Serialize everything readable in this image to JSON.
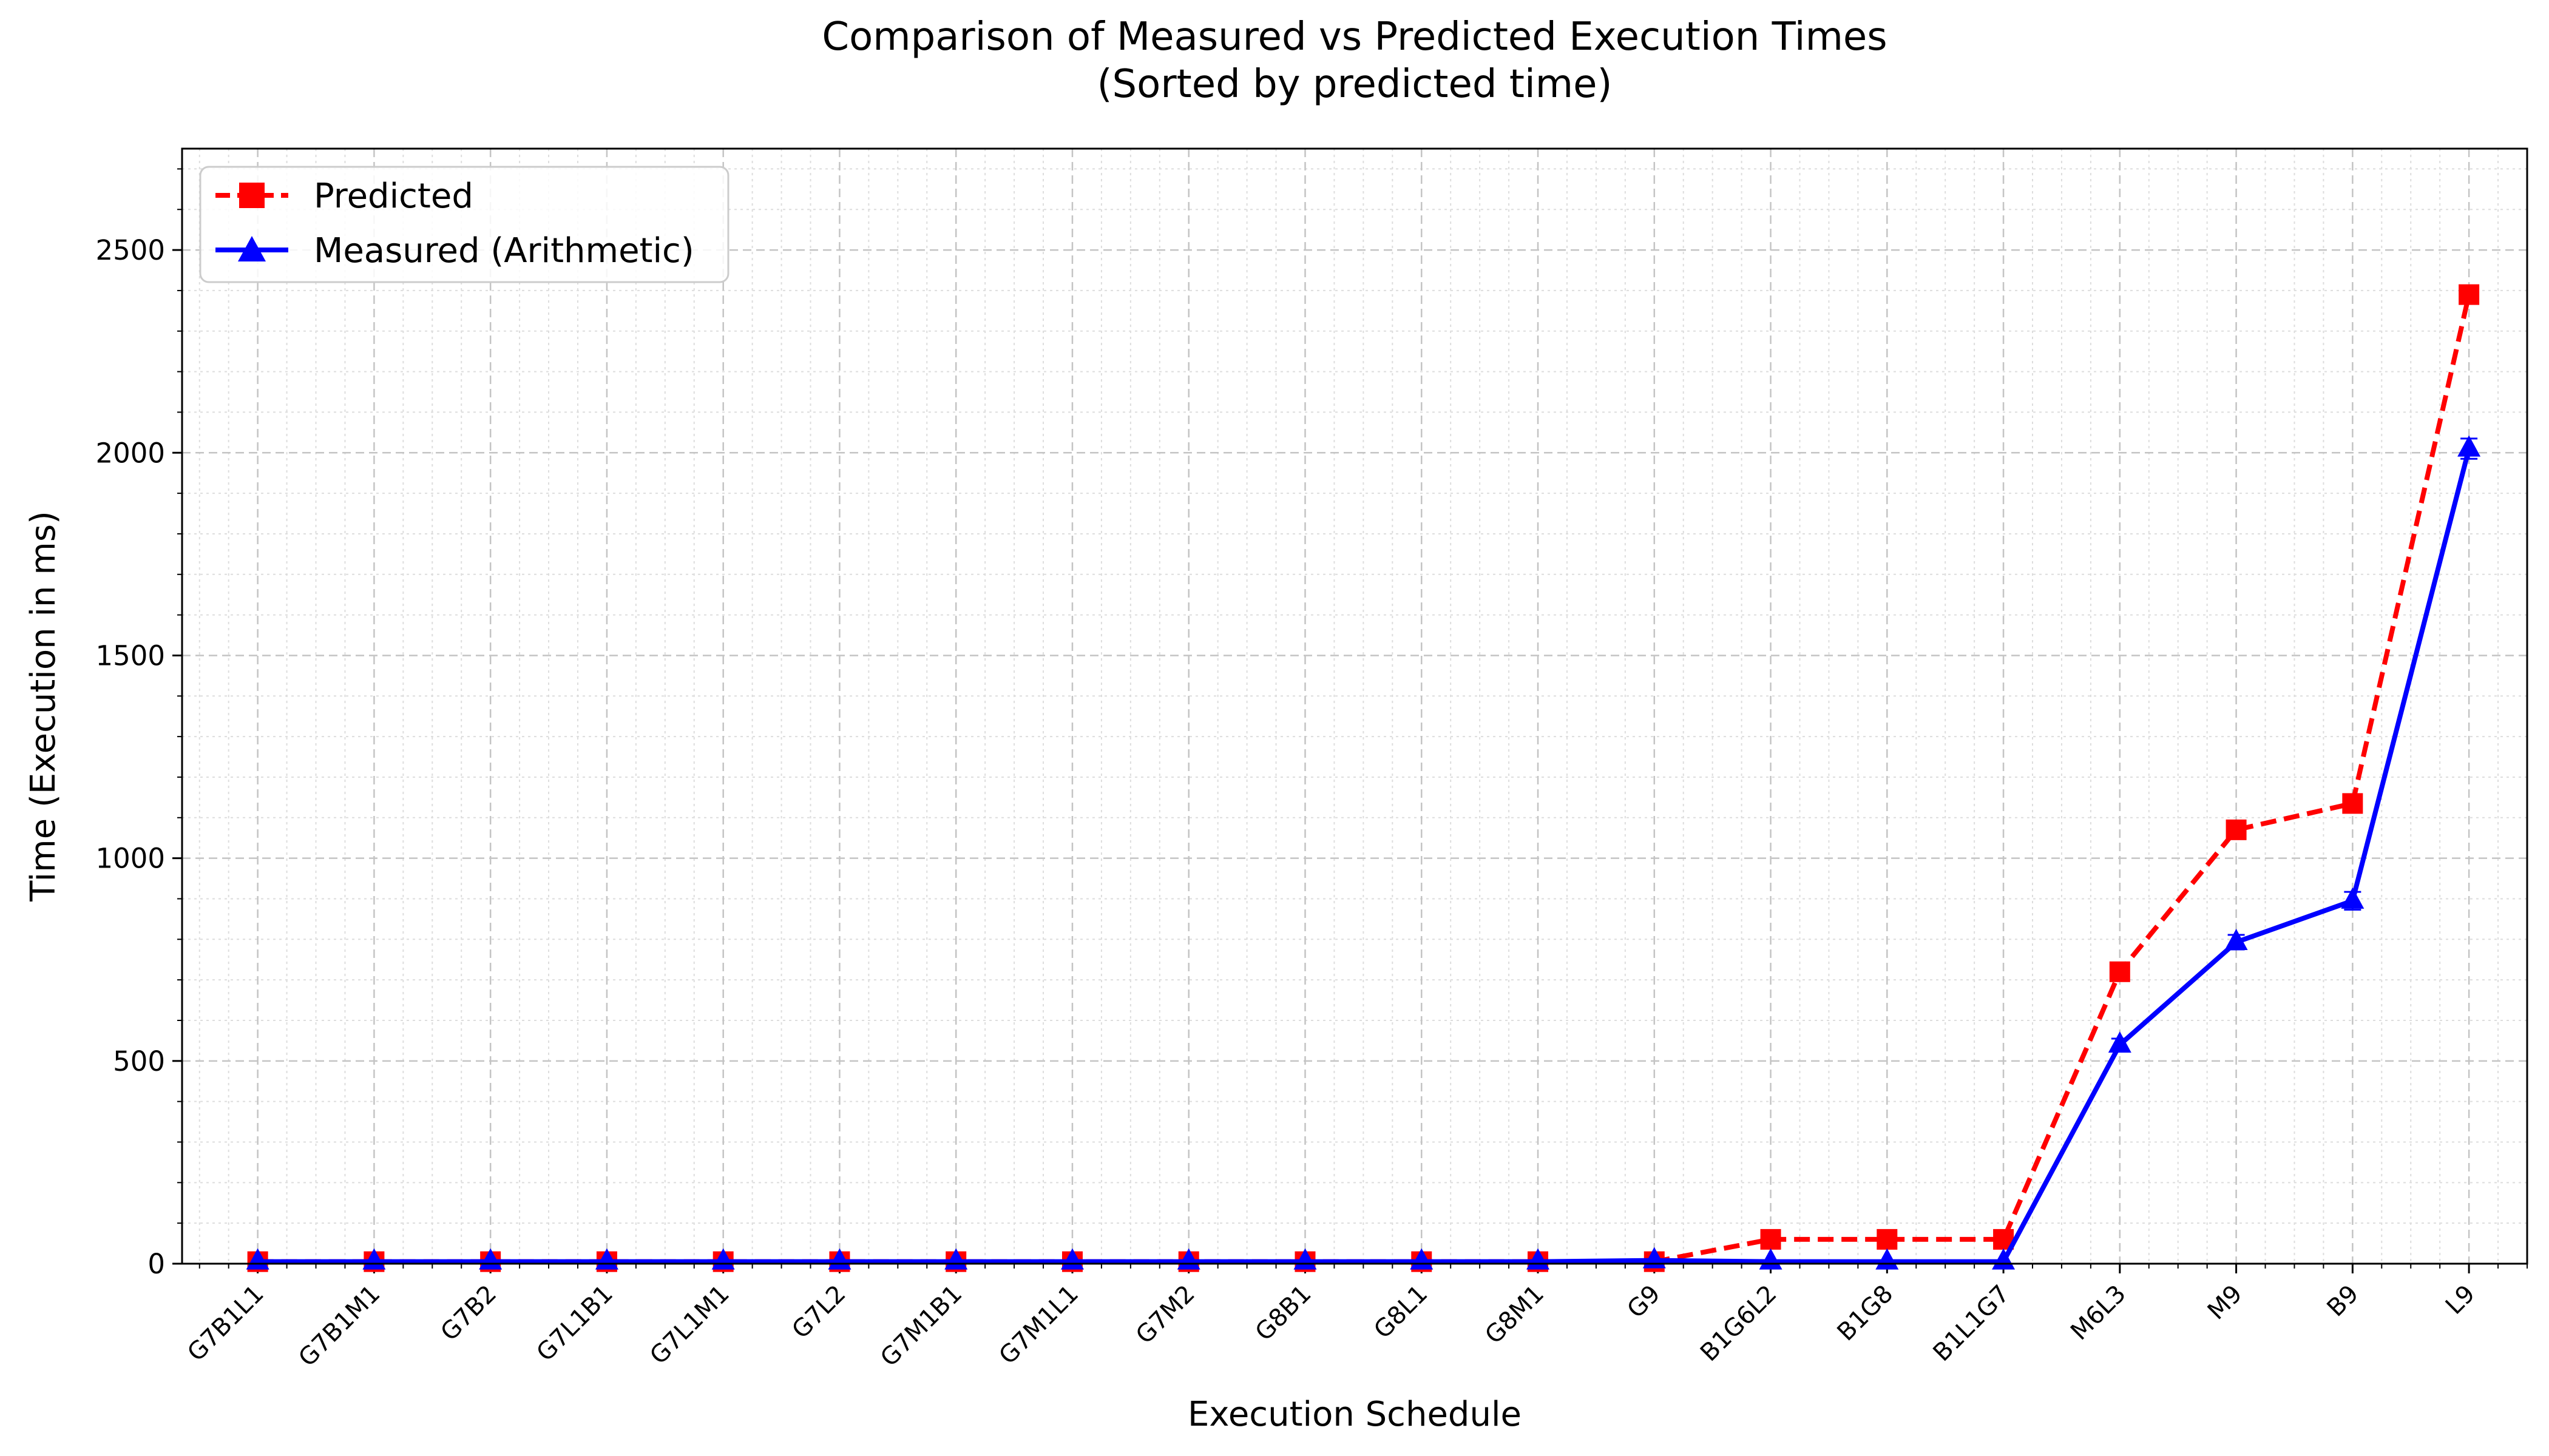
{
  "chart_data": {
    "type": "line",
    "title_line1": "Comparison of Measured vs Predicted Execution Times",
    "title_line2": "(Sorted by predicted time)",
    "xlabel": "Execution Schedule",
    "ylabel": "Time (Execution in ms)",
    "ylim": [
      0,
      2750
    ],
    "yticks": [
      0,
      500,
      1000,
      1500,
      2000,
      2500
    ],
    "grid": true,
    "legend_position": "upper-left",
    "categories": [
      "G7B1L1",
      "G7B1M1",
      "G7B2",
      "G7L1B1",
      "G7L1M1",
      "G7L2",
      "G7M1B1",
      "G7M1L1",
      "G7M2",
      "G8B1",
      "G8L1",
      "G8M1",
      "G9",
      "B1G6L2",
      "B1G8",
      "B1L1G7",
      "M6L3",
      "M9",
      "B9",
      "L9"
    ],
    "series": [
      {
        "name": "Predicted",
        "color": "#ff0000",
        "line_style": "dashed",
        "marker": "square",
        "values": [
          5,
          5,
          5,
          5,
          5,
          5,
          5,
          5,
          5,
          5,
          5,
          5,
          5,
          60,
          60,
          60,
          720,
          1070,
          1135,
          2390
        ]
      },
      {
        "name": "Measured (Arithmetic)",
        "color": "#0000ff",
        "line_style": "solid",
        "marker": "triangle",
        "values": [
          5,
          5,
          5,
          5,
          5,
          5,
          5,
          5,
          5,
          5,
          5,
          5,
          8,
          5,
          5,
          5,
          540,
          793,
          895,
          2010
        ],
        "error": [
          0,
          0,
          0,
          0,
          0,
          0,
          0,
          0,
          0,
          0,
          0,
          0,
          0,
          0,
          0,
          0,
          15,
          18,
          22,
          25
        ]
      }
    ]
  }
}
